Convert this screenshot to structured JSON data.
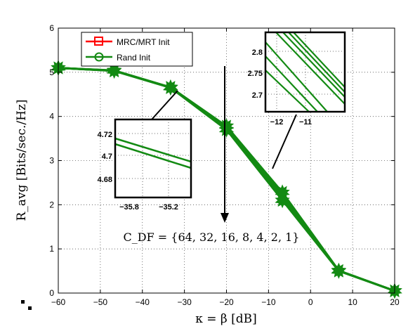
{
  "chart_data": {
    "type": "line",
    "xlabel": "κ = β  [dB]",
    "ylabel": "R_avg  [Bits/sec./Hz]",
    "xlim": [
      -60,
      20
    ],
    "ylim": [
      0,
      6
    ],
    "xticks": [
      -60,
      -50,
      -40,
      -30,
      -20,
      -10,
      0,
      10,
      20
    ],
    "yticks": [
      0,
      1,
      2,
      3,
      4,
      5,
      6
    ],
    "grid": true,
    "legend_position": "top-left",
    "colors": {
      "mrc": "#ff0000",
      "rand": "#138a13"
    },
    "series": [
      {
        "name": "MRC/MRT Init",
        "marker": "square",
        "x": [
          -60,
          -46.7,
          -33.3,
          -20,
          -6.7,
          6.7,
          20
        ],
        "y": [
          5.1,
          5.04,
          4.66,
          3.78,
          2.28,
          0.51,
          0.05
        ]
      },
      {
        "name": "Rand Init",
        "marker": "circle",
        "x": [
          -60,
          -46.7,
          -33.3,
          -20,
          -6.7,
          6.7,
          20
        ],
        "y": [
          5.1,
          5.03,
          4.65,
          3.7,
          2.1,
          0.5,
          0.05
        ]
      }
    ],
    "annotation": "C_DF = {64, 32, 16, 8, 4, 2, 1}",
    "insets": [
      {
        "xticks": [
          "−35.8",
          "−35.2"
        ],
        "yticks": [
          "4.72",
          "4.7",
          "4.68"
        ]
      },
      {
        "xticks": [
          "−12",
          "−11"
        ],
        "yticks": [
          "2.8",
          "2.75",
          "2.7"
        ]
      }
    ]
  }
}
